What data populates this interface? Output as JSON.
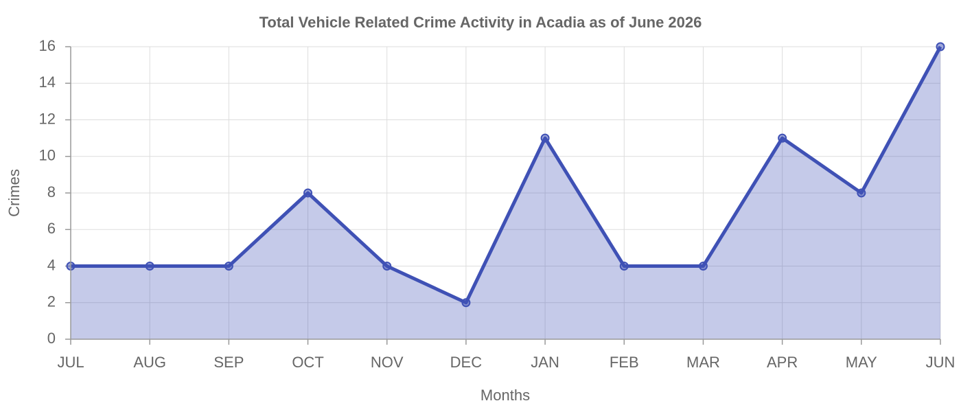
{
  "chart_data": {
    "type": "area",
    "title": "Total Vehicle Related Crime Activity in Acadia as of June 2026",
    "x_label": "Months",
    "y_label": "Crimes",
    "categories": [
      "JUL",
      "AUG",
      "SEP",
      "OCT",
      "NOV",
      "DEC",
      "JAN",
      "FEB",
      "MAR",
      "APR",
      "MAY",
      "JUN"
    ],
    "series": [
      {
        "name": "Crimes",
        "color": "#3f51b5",
        "values": [
          4,
          4,
          4,
          8,
          4,
          2,
          11,
          4,
          4,
          11,
          8,
          16
        ]
      }
    ],
    "ylim": [
      0,
      16
    ],
    "yticks": [
      0,
      2,
      4,
      6,
      8,
      10,
      12,
      14,
      16
    ],
    "grid": true
  }
}
